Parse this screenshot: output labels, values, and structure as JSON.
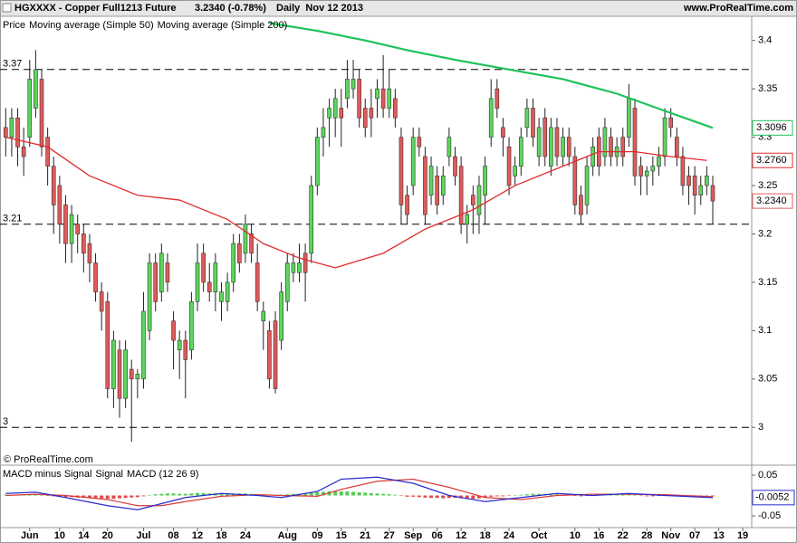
{
  "chart_data": [
    {
      "type": "candlestick",
      "title": "HGXXXX - Copper Full1213 Future",
      "subtitle": "3.2340 (-0.78%)",
      "period": "Daily  Nov 12 2013",
      "source": "www.ProRealTime.com",
      "watermark": "© ProRealTime.com",
      "legend_label": "Price",
      "up_color": "#5cd65c",
      "down_color": "#e05a5a",
      "xlim": [
        -0.5,
        124.5
      ],
      "xticks": [
        {
          "value": 4,
          "label": "Jun"
        },
        {
          "value": 9,
          "label": "10"
        },
        {
          "value": 13,
          "label": "14"
        },
        {
          "value": 17,
          "label": "20"
        },
        {
          "value": 23,
          "label": "Jul"
        },
        {
          "value": 28,
          "label": "08"
        },
        {
          "value": 32,
          "label": "12"
        },
        {
          "value": 36,
          "label": "18"
        },
        {
          "value": 40,
          "label": "24"
        },
        {
          "value": 47,
          "label": "Aug"
        },
        {
          "value": 52,
          "label": "09"
        },
        {
          "value": 56,
          "label": "15"
        },
        {
          "value": 60,
          "label": "21"
        },
        {
          "value": 64,
          "label": "27"
        },
        {
          "value": 68,
          "label": "Sep"
        },
        {
          "value": 72,
          "label": "06"
        },
        {
          "value": 76,
          "label": "12"
        },
        {
          "value": 80,
          "label": "18"
        },
        {
          "value": 84,
          "label": "24"
        },
        {
          "value": 89,
          "label": "Oct"
        },
        {
          "value": 95,
          "label": "10"
        },
        {
          "value": 99,
          "label": "16"
        },
        {
          "value": 103,
          "label": "22"
        },
        {
          "value": 107,
          "label": "28"
        },
        {
          "value": 111,
          "label": "Nov"
        },
        {
          "value": 115,
          "label": "07"
        },
        {
          "value": 119,
          "label": "13"
        },
        {
          "value": 123,
          "label": "19"
        }
      ],
      "ylim": [
        2.974,
        3.425
      ],
      "yticks": [
        3,
        3.05,
        3.1,
        3.15,
        3.2,
        3.25,
        3.3,
        3.35,
        3.4
      ],
      "hlines": [
        3.37,
        3.21,
        3
      ],
      "last_value": {
        "value": 3.234,
        "label": "3.2340"
      },
      "candles": [
        [
          3.31,
          3.33,
          3.28,
          3.3
        ],
        [
          3.3,
          3.33,
          3.28,
          3.32
        ],
        [
          3.32,
          3.33,
          3.27,
          3.29
        ],
        [
          3.29,
          3.31,
          3.26,
          3.28
        ],
        [
          3.3,
          3.38,
          3.29,
          3.36
        ],
        [
          3.33,
          3.39,
          3.32,
          3.37
        ],
        [
          3.36,
          3.37,
          3.28,
          3.29
        ],
        [
          3.3,
          3.31,
          3.25,
          3.27
        ],
        [
          3.27,
          3.28,
          3.2,
          3.23
        ],
        [
          3.25,
          3.26,
          3.19,
          3.21
        ],
        [
          3.23,
          3.24,
          3.17,
          3.19
        ],
        [
          3.19,
          3.23,
          3.17,
          3.22
        ],
        [
          3.21,
          3.22,
          3.18,
          3.2
        ],
        [
          3.2,
          3.21,
          3.16,
          3.18
        ],
        [
          3.19,
          3.2,
          3.15,
          3.17
        ],
        [
          3.17,
          3.18,
          3.13,
          3.14
        ],
        [
          3.14,
          3.15,
          3.1,
          3.12
        ],
        [
          3.13,
          3.14,
          3.03,
          3.04
        ],
        [
          3.04,
          3.1,
          3.02,
          3.09
        ],
        [
          3.08,
          3.09,
          3.01,
          3.03
        ],
        [
          3.03,
          3.09,
          3.02,
          3.08
        ],
        [
          3.06,
          3.07,
          2.985,
          3.05
        ],
        [
          3.05,
          3.06,
          3.03,
          3.055
        ],
        [
          3.05,
          3.14,
          3.04,
          3.12
        ],
        [
          3.1,
          3.18,
          3.09,
          3.17
        ],
        [
          3.17,
          3.18,
          3.12,
          3.13
        ],
        [
          3.14,
          3.19,
          3.13,
          3.18
        ],
        [
          3.17,
          3.18,
          3.14,
          3.15
        ],
        [
          3.11,
          3.12,
          3.06,
          3.09
        ],
        [
          3.08,
          3.1,
          3.05,
          3.09
        ],
        [
          3.09,
          3.1,
          3.03,
          3.07
        ],
        [
          3.08,
          3.14,
          3.07,
          3.13
        ],
        [
          3.13,
          3.19,
          3.12,
          3.17
        ],
        [
          3.18,
          3.19,
          3.14,
          3.15
        ],
        [
          3.15,
          3.17,
          3.13,
          3.14
        ],
        [
          3.14,
          3.18,
          3.12,
          3.17
        ],
        [
          3.13,
          3.15,
          3.11,
          3.14
        ],
        [
          3.13,
          3.16,
          3.12,
          3.15
        ],
        [
          3.15,
          3.2,
          3.14,
          3.19
        ],
        [
          3.19,
          3.2,
          3.16,
          3.17
        ],
        [
          3.18,
          3.22,
          3.17,
          3.21
        ],
        [
          3.2,
          3.21,
          3.17,
          3.18
        ],
        [
          3.17,
          3.19,
          3.12,
          3.13
        ],
        [
          3.11,
          3.13,
          3.08,
          3.12
        ],
        [
          3.1,
          3.11,
          3.04,
          3.05
        ],
        [
          3.11,
          3.12,
          3.035,
          3.04
        ],
        [
          3.09,
          3.15,
          3.08,
          3.14
        ],
        [
          3.13,
          3.18,
          3.12,
          3.17
        ],
        [
          3.16,
          3.18,
          3.15,
          3.17
        ],
        [
          3.16,
          3.19,
          3.15,
          3.17
        ],
        [
          3.18,
          3.19,
          3.13,
          3.16
        ],
        [
          3.18,
          3.26,
          3.17,
          3.25
        ],
        [
          3.25,
          3.31,
          3.24,
          3.3
        ],
        [
          3.3,
          3.33,
          3.28,
          3.31
        ],
        [
          3.32,
          3.34,
          3.29,
          3.33
        ],
        [
          3.32,
          3.35,
          3.3,
          3.34
        ],
        [
          3.33,
          3.35,
          3.29,
          3.32
        ],
        [
          3.34,
          3.38,
          3.33,
          3.36
        ],
        [
          3.35,
          3.38,
          3.34,
          3.36
        ],
        [
          3.36,
          3.37,
          3.31,
          3.32
        ],
        [
          3.33,
          3.34,
          3.3,
          3.31
        ],
        [
          3.33,
          3.35,
          3.3,
          3.32
        ],
        [
          3.34,
          3.36,
          3.32,
          3.35
        ],
        [
          3.35,
          3.385,
          3.32,
          3.33
        ],
        [
          3.33,
          3.37,
          3.32,
          3.35
        ],
        [
          3.34,
          3.35,
          3.31,
          3.32
        ],
        [
          3.3,
          3.31,
          3.21,
          3.23
        ],
        [
          3.24,
          3.25,
          3.21,
          3.22
        ],
        [
          3.25,
          3.31,
          3.24,
          3.3
        ],
        [
          3.3,
          3.31,
          3.28,
          3.29
        ],
        [
          3.28,
          3.29,
          3.21,
          3.22
        ],
        [
          3.24,
          3.28,
          3.23,
          3.27
        ],
        [
          3.26,
          3.27,
          3.22,
          3.23
        ],
        [
          3.24,
          3.27,
          3.23,
          3.26
        ],
        [
          3.28,
          3.31,
          3.27,
          3.3
        ],
        [
          3.28,
          3.29,
          3.25,
          3.26
        ],
        [
          3.27,
          3.28,
          3.2,
          3.21
        ],
        [
          3.21,
          3.23,
          3.19,
          3.22
        ],
        [
          3.24,
          3.25,
          3.2,
          3.23
        ],
        [
          3.22,
          3.26,
          3.2,
          3.25
        ],
        [
          3.24,
          3.28,
          3.21,
          3.27
        ],
        [
          3.3,
          3.36,
          3.29,
          3.34
        ],
        [
          3.35,
          3.36,
          3.32,
          3.33
        ],
        [
          3.31,
          3.32,
          3.28,
          3.3
        ],
        [
          3.29,
          3.3,
          3.24,
          3.25
        ],
        [
          3.26,
          3.28,
          3.25,
          3.27
        ],
        [
          3.27,
          3.31,
          3.26,
          3.3
        ],
        [
          3.31,
          3.34,
          3.3,
          3.33
        ],
        [
          3.33,
          3.34,
          3.29,
          3.3
        ],
        [
          3.28,
          3.32,
          3.27,
          3.31
        ],
        [
          3.32,
          3.33,
          3.27,
          3.28
        ],
        [
          3.27,
          3.32,
          3.26,
          3.31
        ],
        [
          3.31,
          3.32,
          3.27,
          3.28
        ],
        [
          3.28,
          3.31,
          3.27,
          3.3
        ],
        [
          3.3,
          3.31,
          3.27,
          3.28
        ],
        [
          3.28,
          3.29,
          3.22,
          3.23
        ],
        [
          3.24,
          3.25,
          3.21,
          3.22
        ],
        [
          3.23,
          3.28,
          3.22,
          3.27
        ],
        [
          3.27,
          3.3,
          3.26,
          3.29
        ],
        [
          3.3,
          3.31,
          3.26,
          3.27
        ],
        [
          3.28,
          3.32,
          3.27,
          3.31
        ],
        [
          3.3,
          3.31,
          3.27,
          3.28
        ],
        [
          3.28,
          3.3,
          3.27,
          3.29
        ],
        [
          3.3,
          3.31,
          3.27,
          3.28
        ],
        [
          3.3,
          3.355,
          3.29,
          3.34
        ],
        [
          3.33,
          3.34,
          3.25,
          3.26
        ],
        [
          3.27,
          3.28,
          3.24,
          3.26
        ],
        [
          3.26,
          3.27,
          3.24,
          3.265
        ],
        [
          3.265,
          3.28,
          3.25,
          3.27
        ],
        [
          3.27,
          3.29,
          3.26,
          3.28
        ],
        [
          3.28,
          3.33,
          3.27,
          3.32
        ],
        [
          3.32,
          3.33,
          3.3,
          3.31
        ],
        [
          3.3,
          3.31,
          3.27,
          3.28
        ],
        [
          3.28,
          3.29,
          3.24,
          3.25
        ],
        [
          3.26,
          3.27,
          3.23,
          3.25
        ],
        [
          3.26,
          3.27,
          3.22,
          3.24
        ],
        [
          3.24,
          3.26,
          3.23,
          3.25
        ],
        [
          3.25,
          3.27,
          3.24,
          3.26
        ],
        [
          3.25,
          3.26,
          3.21,
          3.234
        ]
      ],
      "series": [
        {
          "name": "Moving average (Simple 50)",
          "color": "#e32b2b",
          "x": [
            0,
            7,
            14,
            22,
            29,
            37,
            43,
            49,
            55,
            63,
            70,
            78,
            85,
            93,
            99,
            105,
            111,
            117
          ],
          "values": [
            3.3,
            3.29,
            3.26,
            3.24,
            3.235,
            3.215,
            3.19,
            3.175,
            3.165,
            3.18,
            3.205,
            3.225,
            3.25,
            3.27,
            3.285,
            3.285,
            3.28,
            3.276
          ],
          "last_value": {
            "value": 3.276,
            "label": "3.2760"
          }
        },
        {
          "name": "Moving average (Simple 200)",
          "color": "#1ec25a",
          "x": [
            44,
            52,
            60,
            67,
            75,
            84,
            93,
            102,
            111,
            118
          ],
          "values": [
            3.418,
            3.41,
            3.4,
            3.39,
            3.38,
            3.37,
            3.36,
            3.345,
            3.325,
            3.3096
          ],
          "last_value": {
            "value": 3.3096,
            "label": "3.3096"
          }
        }
      ]
    },
    {
      "type": "macd",
      "ylim": [
        -0.07,
        0.07
      ],
      "yticks": [
        -0.05,
        0.05
      ],
      "histogram": {
        "name": "MACD minus Signal",
        "up_color": "#55cc55",
        "down_color": "#dd4b4b",
        "values": [
          0.002,
          0.002,
          0.001,
          0.001,
          0.002,
          0.003,
          0.002,
          -0.001,
          -0.002,
          -0.003,
          -0.004,
          -0.004,
          -0.005,
          -0.005,
          -0.006,
          -0.007,
          -0.007,
          -0.008,
          -0.008,
          -0.007,
          -0.006,
          -0.005,
          -0.004,
          -0.002,
          0.001,
          0.003,
          0.004,
          0.005,
          0.005,
          0.004,
          0.004,
          0.005,
          0.006,
          0.006,
          0.005,
          0.005,
          0.004,
          0.004,
          0.005,
          0.005,
          0.005,
          0.004,
          0.003,
          0.002,
          0.001,
          0.001,
          0.002,
          0.003,
          0.004,
          0.004,
          0.004,
          0.006,
          0.008,
          0.009,
          0.01,
          0.01,
          0.01,
          0.01,
          0.009,
          0.008,
          0.007,
          0.006,
          0.005,
          0.004,
          0.003,
          0.002,
          -0.001,
          -0.003,
          -0.003,
          -0.004,
          -0.005,
          -0.006,
          -0.006,
          -0.007,
          -0.006,
          -0.006,
          -0.007,
          -0.008,
          -0.008,
          -0.007,
          -0.005,
          -0.003,
          -0.002,
          -0.002,
          -0.001,
          0.001,
          0.002,
          0.003,
          0.004,
          0.004,
          0.004,
          0.003,
          0.003,
          0.002,
          0.001,
          -0.001,
          -0.002,
          -0.001,
          0.001,
          0.002,
          0.003,
          0.003,
          0.003,
          0.002,
          0.002,
          0.001,
          -0.001,
          -0.002,
          -0.002,
          -0.001,
          0.001,
          0.001,
          -0.001,
          -0.002,
          -0.003,
          -0.003,
          -0.003,
          -0.002,
          -0.002
        ]
      },
      "series": [
        {
          "name": "Signal",
          "color": "#d93b3b",
          "x": [
            0,
            5,
            10,
            17,
            22,
            26,
            30,
            36,
            42,
            46,
            52,
            56,
            62,
            68,
            74,
            80,
            86,
            92,
            98,
            104,
            110,
            118
          ],
          "values": [
            0.0,
            0.003,
            0.0,
            -0.01,
            -0.025,
            -0.025,
            -0.015,
            -0.002,
            0.002,
            0.0,
            -0.002,
            0.015,
            0.035,
            0.04,
            0.02,
            -0.005,
            -0.01,
            0.0,
            0.003,
            0.003,
            0.002,
            -0.003
          ]
        },
        {
          "name": "MACD (12 26 9)",
          "color": "#2a2acc",
          "x": [
            0,
            5,
            10,
            17,
            22,
            26,
            30,
            36,
            42,
            46,
            52,
            56,
            62,
            68,
            74,
            80,
            86,
            92,
            98,
            104,
            110,
            118
          ],
          "values": [
            0.005,
            0.008,
            -0.005,
            -0.025,
            -0.035,
            -0.02,
            -0.005,
            0.005,
            0.0,
            -0.005,
            0.01,
            0.04,
            0.045,
            0.03,
            0.0,
            -0.015,
            -0.005,
            0.005,
            0.0,
            0.005,
            0.0,
            -0.0052
          ],
          "last_value": {
            "value": -0.0052,
            "label": "-0.0052"
          }
        }
      ]
    }
  ]
}
